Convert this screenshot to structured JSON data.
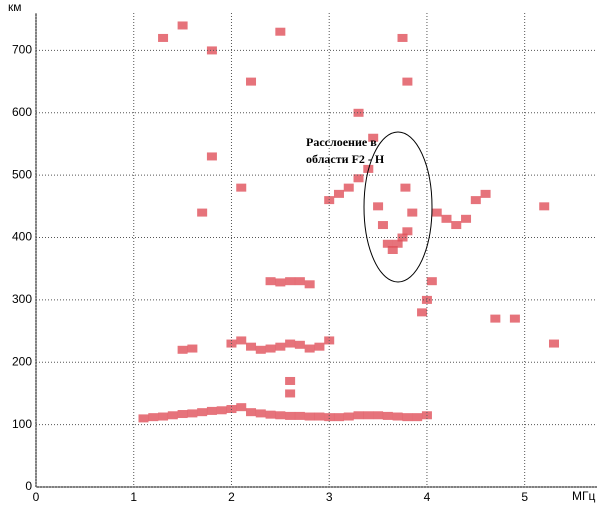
{
  "chart_data": {
    "type": "scatter",
    "y_label": "км",
    "x_label": "МГц",
    "annotation": [
      "Расслоение в",
      "области F2 - H"
    ],
    "color": "#e0505a",
    "xlim": [
      0,
      5.74
    ],
    "ylim": [
      0,
      760
    ],
    "xticks": [
      0,
      1,
      2,
      3,
      4,
      5
    ],
    "yticks": [
      0,
      100,
      200,
      300,
      400,
      500,
      600,
      700
    ],
    "grid": true,
    "x": [
      1.1,
      1.2,
      1.3,
      1.4,
      1.5,
      1.6,
      1.7,
      1.8,
      1.9,
      2.0,
      2.1,
      2.2,
      2.3,
      2.4,
      2.5,
      2.6,
      2.7,
      2.8,
      2.9,
      3.0,
      3.1,
      3.2,
      3.3,
      3.4,
      3.5,
      3.6,
      3.7,
      3.8,
      3.9,
      4.0,
      1.5,
      1.6,
      2.0,
      2.1,
      2.2,
      2.3,
      2.4,
      2.5,
      2.6,
      2.7,
      2.8,
      2.9,
      3.0,
      2.4,
      2.5,
      2.6,
      2.7,
      2.8,
      2.6,
      2.6,
      3.0,
      3.1,
      3.2,
      3.3,
      3.4,
      3.5,
      3.55,
      3.6,
      3.65,
      3.7,
      3.75,
      3.8,
      3.85,
      3.78,
      3.45,
      3.95,
      4.0,
      4.05,
      4.1,
      4.2,
      4.3,
      4.4,
      4.5,
      4.6,
      1.3,
      1.5,
      1.8,
      2.2,
      2.5,
      3.75,
      3.8,
      3.3,
      1.7,
      2.1,
      1.8,
      4.7,
      4.9,
      5.3,
      5.2
    ],
    "values": [
      110,
      112,
      113,
      115,
      117,
      118,
      120,
      122,
      123,
      125,
      128,
      120,
      118,
      116,
      115,
      114,
      114,
      113,
      113,
      112,
      112,
      113,
      115,
      115,
      115,
      114,
      113,
      112,
      112,
      115,
      220,
      222,
      230,
      235,
      225,
      220,
      222,
      225,
      230,
      228,
      222,
      225,
      235,
      330,
      328,
      330,
      330,
      325,
      170,
      150,
      460,
      470,
      480,
      495,
      510,
      450,
      420,
      390,
      380,
      390,
      400,
      410,
      440,
      480,
      560,
      280,
      300,
      330,
      440,
      430,
      420,
      430,
      460,
      470,
      720,
      740,
      700,
      650,
      730,
      720,
      650,
      600,
      440,
      480,
      530,
      270,
      270,
      230,
      450
    ]
  }
}
